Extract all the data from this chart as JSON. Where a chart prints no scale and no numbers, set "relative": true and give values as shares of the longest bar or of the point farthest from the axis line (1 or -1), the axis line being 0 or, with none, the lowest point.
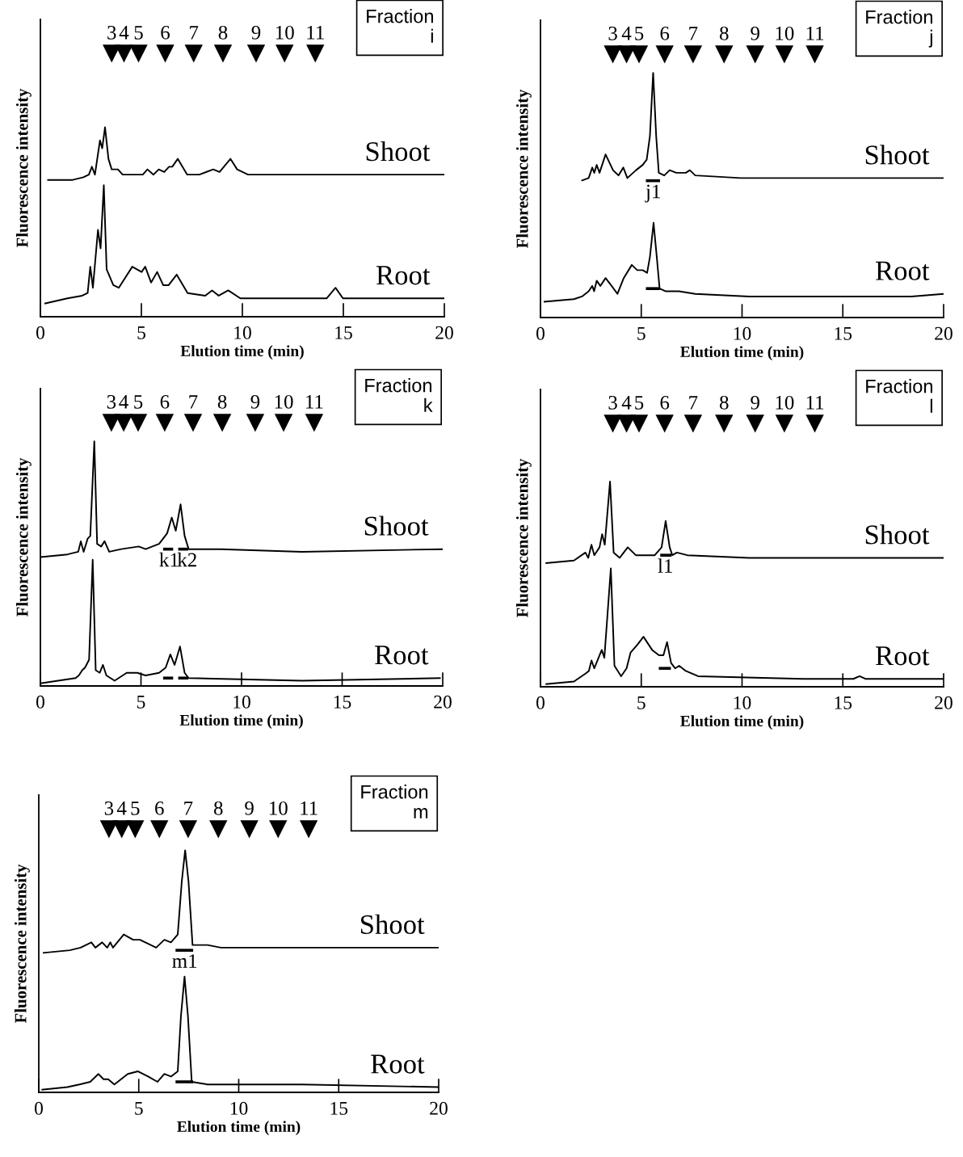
{
  "chart_data": [
    {
      "type": "line",
      "relative": true,
      "xlabel": "Elution time (min)",
      "ylabel": "Fluorescence intensity",
      "xlim": [
        0,
        20
      ],
      "xticks": [
        0,
        5,
        10,
        15,
        20
      ],
      "grid": false,
      "annotations": [
        "Fraction\ni",
        {
          "text": "3",
          "x": 3.53,
          "y": 1
        },
        {
          "text": "4",
          "x": 4.14,
          "y": 1
        },
        {
          "text": "5",
          "x": 4.86,
          "y": 1
        },
        {
          "text": "6",
          "x": 6.18,
          "y": 1
        },
        {
          "text": "7",
          "x": 7.59,
          "y": 1
        },
        {
          "text": "8",
          "x": 9.04,
          "y": 1
        },
        {
          "text": "9",
          "x": 10.68,
          "y": 1
        },
        {
          "text": "10",
          "x": 12.09,
          "y": 1
        },
        {
          "text": "11",
          "x": 13.61,
          "y": 1
        }
      ],
      "series": [
        {
          "name": "Shoot",
          "color": "#000000",
          "x": [
            0.34,
            1.6,
            2.13,
            2.4,
            2.55,
            2.7,
            2.95,
            3.06,
            3.2,
            3.37,
            3.53,
            3.84,
            4.07,
            5.07,
            5.3,
            5.6,
            5.86,
            6.13,
            6.37,
            6.53,
            6.8,
            7.27,
            7.87,
            8.56,
            8.87,
            9.41,
            9.74,
            10.28,
            13.36,
            20
          ],
          "values": [
            0.52,
            0.52,
            0.53,
            0.54,
            0.57,
            0.54,
            0.67,
            0.64,
            0.72,
            0.6,
            0.56,
            0.56,
            0.54,
            0.54,
            0.56,
            0.54,
            0.56,
            0.55,
            0.57,
            0.57,
            0.6,
            0.54,
            0.54,
            0.56,
            0.55,
            0.6,
            0.56,
            0.54,
            0.54,
            0.54
          ]
        },
        {
          "name": "Root",
          "color": "#000000",
          "x": [
            0.2,
            1.34,
            2.07,
            2.34,
            2.47,
            2.6,
            2.85,
            2.98,
            3.14,
            3.28,
            3.61,
            3.88,
            4.55,
            5.01,
            5.19,
            5.48,
            5.78,
            6.08,
            6.35,
            6.75,
            7.29,
            8.16,
            8.5,
            8.83,
            9.3,
            9.9,
            14.18,
            14.61,
            14.98,
            20
          ],
          "values": [
            0.05,
            0.07,
            0.08,
            0.09,
            0.19,
            0.11,
            0.33,
            0.26,
            0.5,
            0.18,
            0.12,
            0.11,
            0.19,
            0.17,
            0.19,
            0.13,
            0.17,
            0.12,
            0.12,
            0.16,
            0.09,
            0.08,
            0.1,
            0.08,
            0.1,
            0.07,
            0.07,
            0.11,
            0.07,
            0.07
          ]
        },
        {
          "type": "scatter",
          "marker": "triangle",
          "color": "#000000",
          "x": [
            3.53,
            4.14,
            4.86,
            6.18,
            7.59,
            9.04,
            10.68,
            12.09,
            13.61
          ],
          "values": [
            1,
            1,
            1,
            1,
            1,
            1,
            1,
            1,
            1
          ]
        }
      ]
    },
    {
      "type": "line",
      "relative": true,
      "xlabel": "Elution time (min)",
      "ylabel": "Fluorescence intensity",
      "xlim": [
        0,
        20
      ],
      "xticks": [
        0,
        5,
        10,
        15,
        20
      ],
      "grid": false,
      "annotations": [
        "Fraction\nj",
        {
          "text": "j1",
          "x": 5.6,
          "y": 0.52
        },
        {
          "text": "3",
          "x": 3.59,
          "y": 1
        },
        {
          "text": "4",
          "x": 4.27,
          "y": 1
        },
        {
          "text": "5",
          "x": 4.89,
          "y": 1
        },
        {
          "text": "6",
          "x": 6.16,
          "y": 1
        },
        {
          "text": "7",
          "x": 7.57,
          "y": 1
        },
        {
          "text": "8",
          "x": 9.11,
          "y": 1
        },
        {
          "text": "9",
          "x": 10.65,
          "y": 1
        },
        {
          "text": "10",
          "x": 12.1,
          "y": 1
        },
        {
          "text": "11",
          "x": 13.61,
          "y": 1
        }
      ],
      "series": [
        {
          "name": "Shoot",
          "color": "#000000",
          "x": [
            2.03,
            2.39,
            2.57,
            2.67,
            2.79,
            2.93,
            3.23,
            3.6,
            3.87,
            4.11,
            4.31,
            4.74,
            5.07,
            5.27,
            5.43,
            5.59,
            5.74,
            5.87,
            6.14,
            6.41,
            6.74,
            7.21,
            7.41,
            7.68,
            9.95,
            14.37,
            20
          ],
          "values": [
            0.52,
            0.53,
            0.57,
            0.55,
            0.58,
            0.55,
            0.62,
            0.56,
            0.54,
            0.57,
            0.53,
            0.56,
            0.58,
            0.6,
            0.69,
            0.93,
            0.69,
            0.55,
            0.54,
            0.56,
            0.55,
            0.55,
            0.56,
            0.54,
            0.53,
            0.53,
            0.53
          ]
        },
        {
          "name": "Root",
          "color": "#000000",
          "x": [
            0.16,
            1.66,
            2.06,
            2.39,
            2.57,
            2.66,
            2.79,
            2.97,
            3.23,
            3.53,
            3.82,
            4.13,
            4.53,
            4.8,
            5.07,
            5.29,
            5.43,
            5.61,
            5.77,
            5.91,
            6.2,
            6.47,
            6.87,
            7.68,
            10.36,
            13.04,
            18.4,
            20
          ],
          "values": [
            0.06,
            0.07,
            0.08,
            0.1,
            0.12,
            0.1,
            0.14,
            0.12,
            0.15,
            0.12,
            0.09,
            0.15,
            0.2,
            0.18,
            0.18,
            0.17,
            0.23,
            0.36,
            0.23,
            0.11,
            0.1,
            0.1,
            0.1,
            0.09,
            0.08,
            0.08,
            0.08,
            0.09
          ]
        },
        {
          "type": "line",
          "color": "#000000",
          "x": [
            5.23,
            5.93
          ],
          "values": [
            0.52,
            0.52
          ]
        },
        {
          "type": "line",
          "color": "#000000",
          "x": [
            5.23,
            5.93
          ],
          "values": [
            0.11,
            0.11
          ]
        },
        {
          "type": "scatter",
          "marker": "triangle",
          "color": "#000000",
          "x": [
            3.59,
            4.27,
            4.89,
            6.16,
            7.57,
            9.11,
            10.65,
            12.1,
            13.61
          ],
          "values": [
            1,
            1,
            1,
            1,
            1,
            1,
            1,
            1,
            1
          ]
        }
      ]
    },
    {
      "type": "line",
      "relative": true,
      "xlabel": "Elution time (min)",
      "ylabel": "Fluorescence intensity",
      "xlim": [
        0,
        20
      ],
      "xticks": [
        0,
        5,
        10,
        15,
        20
      ],
      "grid": false,
      "annotations": [
        "Fraction\nk",
        {
          "text": "k1",
          "x": 6.4,
          "y": 0.52
        },
        {
          "text": "k2",
          "x": 7.3,
          "y": 0.52
        },
        {
          "text": "3",
          "x": 3.53,
          "y": 1
        },
        {
          "text": "4",
          "x": 4.14,
          "y": 1
        },
        {
          "text": "5",
          "x": 4.86,
          "y": 1
        },
        {
          "text": "6",
          "x": 6.18,
          "y": 1
        },
        {
          "text": "7",
          "x": 7.59,
          "y": 1
        },
        {
          "text": "8",
          "x": 9.04,
          "y": 1
        },
        {
          "text": "9",
          "x": 10.68,
          "y": 1
        },
        {
          "text": "10",
          "x": 12.09,
          "y": 1
        },
        {
          "text": "11",
          "x": 13.61,
          "y": 1
        }
      ],
      "series": [
        {
          "name": "Shoot",
          "color": "#000000",
          "x": [
            0.01,
            1.35,
            1.88,
            2.01,
            2.15,
            2.35,
            2.48,
            2.68,
            2.82,
            3.02,
            3.19,
            3.42,
            4.02,
            4.89,
            5.23,
            5.9,
            6.3,
            6.53,
            6.73,
            6.97,
            7.17,
            7.37,
            8.98,
            13,
            20
          ],
          "values": [
            0.49,
            0.5,
            0.51,
            0.55,
            0.51,
            0.56,
            0.57,
            0.93,
            0.54,
            0.53,
            0.55,
            0.51,
            0.52,
            0.53,
            0.52,
            0.54,
            0.58,
            0.64,
            0.59,
            0.69,
            0.57,
            0.52,
            0.52,
            0.51,
            0.52
          ]
        },
        {
          "name": "Root",
          "color": "#000000",
          "x": [
            0,
            1.75,
            1.91,
            2.08,
            2.22,
            2.42,
            2.6,
            2.75,
            2.95,
            3.11,
            3.28,
            3.69,
            4.29,
            4.82,
            5.23,
            5.9,
            6.23,
            6.46,
            6.67,
            6.94,
            7.17,
            7.37,
            13,
            19.9
          ],
          "values": [
            0.01,
            0.03,
            0.04,
            0.06,
            0.07,
            0.1,
            0.48,
            0.06,
            0.05,
            0.08,
            0.04,
            0.02,
            0.05,
            0.05,
            0.04,
            0.05,
            0.07,
            0.12,
            0.08,
            0.15,
            0.05,
            0.03,
            0.02,
            0.03
          ]
        },
        {
          "type": "line",
          "color": "#000000",
          "x": [
            6.1,
            6.6
          ],
          "values": [
            0.52,
            0.52
          ]
        },
        {
          "type": "line",
          "color": "#000000",
          "x": [
            6.85,
            7.35
          ],
          "values": [
            0.52,
            0.52
          ]
        },
        {
          "type": "line",
          "color": "#000000",
          "x": [
            6.1,
            6.6
          ],
          "values": [
            0.03,
            0.03
          ]
        },
        {
          "type": "line",
          "color": "#000000",
          "x": [
            6.85,
            7.35
          ],
          "values": [
            0.03,
            0.03
          ]
        },
        {
          "type": "scatter",
          "marker": "triangle",
          "color": "#000000",
          "x": [
            3.53,
            4.14,
            4.86,
            6.18,
            7.59,
            9.04,
            10.68,
            12.09,
            13.61
          ],
          "values": [
            1,
            1,
            1,
            1,
            1,
            1,
            1,
            1,
            1
          ]
        }
      ]
    },
    {
      "type": "line",
      "relative": true,
      "xlabel": "Elution time (min)",
      "ylabel": "Fluorescence intensity",
      "xlim": [
        0,
        20
      ],
      "xticks": [
        0,
        5,
        10,
        15,
        20
      ],
      "grid": false,
      "annotations": [
        "Fraction\nl",
        {
          "text": "l1",
          "x": 6.2,
          "y": 0.5
        },
        {
          "text": "3",
          "x": 3.59,
          "y": 1
        },
        {
          "text": "4",
          "x": 4.27,
          "y": 1
        },
        {
          "text": "5",
          "x": 4.89,
          "y": 1
        },
        {
          "text": "6",
          "x": 6.16,
          "y": 1
        },
        {
          "text": "7",
          "x": 7.57,
          "y": 1
        },
        {
          "text": "8",
          "x": 9.11,
          "y": 1
        },
        {
          "text": "9",
          "x": 10.65,
          "y": 1
        },
        {
          "text": "10",
          "x": 12.1,
          "y": 1
        },
        {
          "text": "11",
          "x": 13.61,
          "y": 1
        }
      ],
      "series": [
        {
          "name": "Shoot",
          "color": "#000000",
          "x": [
            0.25,
            1.66,
            2.23,
            2.37,
            2.53,
            2.67,
            2.93,
            3.06,
            3.19,
            3.45,
            3.63,
            3.93,
            4.33,
            4.73,
            5.67,
            6.01,
            6.21,
            6.41,
            6.54,
            6.77,
            7.28,
            10.36,
            20
          ],
          "values": [
            0.47,
            0.48,
            0.51,
            0.49,
            0.54,
            0.5,
            0.53,
            0.58,
            0.54,
            0.78,
            0.51,
            0.49,
            0.53,
            0.5,
            0.5,
            0.53,
            0.63,
            0.53,
            0.5,
            0.51,
            0.5,
            0.49,
            0.49
          ]
        },
        {
          "name": "Root",
          "color": "#000000",
          "x": [
            0.25,
            1.66,
            2.23,
            2.4,
            2.53,
            2.67,
            3.04,
            3.17,
            3.49,
            3.67,
            4.0,
            4.27,
            4.47,
            4.81,
            5.11,
            5.54,
            5.88,
            6.1,
            6.28,
            6.48,
            6.68,
            6.88,
            7.21,
            7.82,
            13.04,
            15.52,
            15.83,
            16.12,
            20
          ],
          "values": [
            0.01,
            0.02,
            0.05,
            0.06,
            0.1,
            0.07,
            0.14,
            0.11,
            0.45,
            0.08,
            0.04,
            0.07,
            0.13,
            0.16,
            0.19,
            0.14,
            0.12,
            0.12,
            0.17,
            0.09,
            0.07,
            0.08,
            0.06,
            0.04,
            0.03,
            0.03,
            0.04,
            0.03,
            0.03
          ]
        },
        {
          "type": "line",
          "color": "#000000",
          "x": [
            5.94,
            6.5
          ],
          "values": [
            0.5,
            0.5
          ]
        },
        {
          "type": "line",
          "color": "#000000",
          "x": [
            5.87,
            6.47
          ],
          "values": [
            0.07,
            0.07
          ]
        },
        {
          "type": "scatter",
          "marker": "triangle",
          "color": "#000000",
          "x": [
            3.59,
            4.27,
            4.89,
            6.16,
            7.57,
            9.11,
            10.65,
            12.1,
            13.61
          ],
          "values": [
            1,
            1,
            1,
            1,
            1,
            1,
            1,
            1,
            1
          ]
        }
      ]
    },
    {
      "type": "line",
      "relative": true,
      "xlabel": "Elution time (min)",
      "ylabel": "Fluorescence intensity",
      "xlim": [
        0,
        20
      ],
      "xticks": [
        0,
        5,
        10,
        15,
        20
      ],
      "grid": false,
      "annotations": [
        "Fraction\nm",
        {
          "text": "m1",
          "x": 7.3,
          "y": 0.54
        },
        {
          "text": "3",
          "x": 3.51,
          "y": 1
        },
        {
          "text": "4",
          "x": 4.15,
          "y": 1
        },
        {
          "text": "5",
          "x": 4.82,
          "y": 1
        },
        {
          "text": "6",
          "x": 6.03,
          "y": 1
        },
        {
          "text": "7",
          "x": 7.47,
          "y": 1
        },
        {
          "text": "8",
          "x": 8.98,
          "y": 1
        },
        {
          "text": "9",
          "x": 10.53,
          "y": 1
        },
        {
          "text": "10",
          "x": 11.97,
          "y": 1
        },
        {
          "text": "11",
          "x": 13.5,
          "y": 1
        }
      ],
      "series": [
        {
          "name": "Shoot",
          "color": "#000000",
          "x": [
            0.2,
            1.55,
            2.09,
            2.63,
            2.83,
            3.17,
            3.42,
            3.58,
            3.71,
            4.25,
            4.72,
            5.06,
            5.87,
            6.28,
            6.61,
            6.95,
            7.15,
            7.32,
            7.49,
            7.69,
            8.44,
            9.11,
            13.16,
            20
          ],
          "values": [
            0.53,
            0.54,
            0.55,
            0.57,
            0.55,
            0.57,
            0.55,
            0.57,
            0.55,
            0.6,
            0.58,
            0.58,
            0.55,
            0.58,
            0.57,
            0.6,
            0.8,
            0.92,
            0.8,
            0.56,
            0.56,
            0.55,
            0.55,
            0.55
          ]
        },
        {
          "name": "Root",
          "color": "#000000",
          "x": [
            0.14,
            1.42,
            2.03,
            2.57,
            2.98,
            3.24,
            3.47,
            3.78,
            4.45,
            4.95,
            5.47,
            5.94,
            6.28,
            6.61,
            6.95,
            7.11,
            7.29,
            7.46,
            7.65,
            8.44,
            13.16,
            20
          ],
          "values": [
            0.01,
            0.02,
            0.03,
            0.04,
            0.07,
            0.05,
            0.05,
            0.03,
            0.07,
            0.08,
            0.06,
            0.04,
            0.07,
            0.06,
            0.08,
            0.29,
            0.44,
            0.29,
            0.04,
            0.03,
            0.03,
            0.02
          ]
        },
        {
          "type": "line",
          "color": "#000000",
          "x": [
            6.84,
            7.72
          ],
          "values": [
            0.54,
            0.54
          ]
        },
        {
          "type": "line",
          "color": "#000000",
          "x": [
            6.84,
            7.72
          ],
          "values": [
            0.04,
            0.04
          ]
        },
        {
          "type": "scatter",
          "marker": "triangle",
          "color": "#000000",
          "x": [
            3.51,
            4.15,
            4.82,
            6.03,
            7.47,
            8.98,
            10.53,
            11.97,
            13.5
          ],
          "values": [
            1,
            1,
            1,
            1,
            1,
            1,
            1,
            1,
            1
          ]
        }
      ]
    }
  ]
}
